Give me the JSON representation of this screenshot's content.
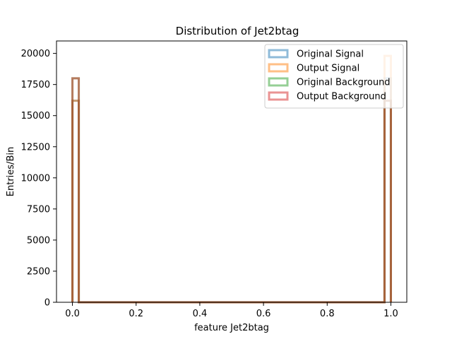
{
  "chart_data": {
    "type": "histogram",
    "title": "Distribution of Jet2btag",
    "xlabel": "feature Jet2btag",
    "ylabel": "Entries/Bin",
    "xlim": [
      -0.05,
      1.05
    ],
    "ylim": [
      0,
      21000
    ],
    "xticks": [
      "0.0",
      "0.2",
      "0.4",
      "0.6",
      "0.8",
      "1.0"
    ],
    "xtick_values": [
      0.0,
      0.2,
      0.4,
      0.6,
      0.8,
      1.0
    ],
    "yticks": [
      "0",
      "2500",
      "5000",
      "7500",
      "10000",
      "12500",
      "15000",
      "17500",
      "20000"
    ],
    "ytick_values": [
      0,
      2500,
      5000,
      7500,
      10000,
      12500,
      15000,
      17500,
      20000
    ],
    "histtype": "step",
    "bin_range": [
      0,
      1
    ],
    "num_bins": 50,
    "grid": false,
    "legend_position": "top-right",
    "series": [
      {
        "name": "Original Signal",
        "color": "#1f77b4",
        "nonzero_bins": [
          {
            "x0": 0.0,
            "x1": 0.02,
            "count": 16200
          },
          {
            "x0": 0.98,
            "x1": 1.0,
            "count": 18000
          }
        ]
      },
      {
        "name": "Output Signal",
        "color": "#ff7f0e",
        "nonzero_bins": [
          {
            "x0": 0.0,
            "x1": 0.02,
            "count": 16200
          },
          {
            "x0": 0.98,
            "x1": 1.0,
            "count": 19800
          }
        ]
      },
      {
        "name": "Original Background",
        "color": "#2ca02c",
        "nonzero_bins": [
          {
            "x0": 0.0,
            "x1": 0.02,
            "count": 18000
          },
          {
            "x0": 0.98,
            "x1": 1.0,
            "count": 16200
          }
        ]
      },
      {
        "name": "Output Background",
        "color": "#d62728",
        "nonzero_bins": [
          {
            "x0": 0.0,
            "x1": 0.02,
            "count": 18000
          },
          {
            "x0": 0.98,
            "x1": 1.0,
            "count": 16200
          }
        ]
      }
    ]
  }
}
